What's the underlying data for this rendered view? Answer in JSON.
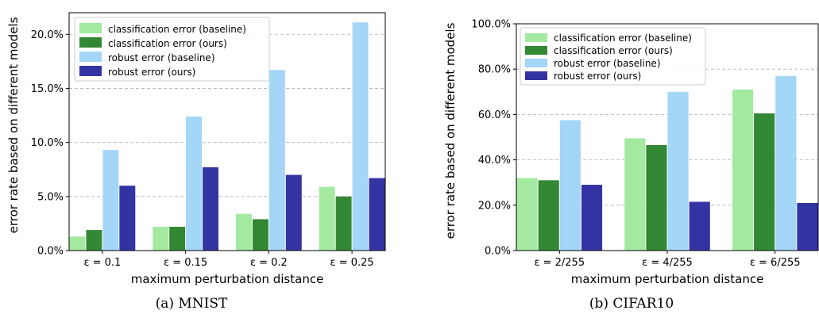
{
  "chart_data": [
    {
      "type": "bar",
      "caption": "(a) MNIST",
      "xlabel": "maximum perturbation distance",
      "ylabel": "error rate based on different models",
      "categories": [
        "ε = 0.1",
        "ε = 0.15",
        "ε = 0.2",
        "ε = 0.25"
      ],
      "ylim": [
        0,
        22
      ],
      "yticks": [
        0,
        5,
        10,
        15,
        20
      ],
      "ytick_labels": [
        "0.0%",
        "5.0%",
        "10.0%",
        "15.0%",
        "20.0%"
      ],
      "grid": "horizontal-dashed",
      "legend_position": "top-left",
      "series": [
        {
          "name": "classification error (baseline)",
          "color": "#a3eaa0",
          "values": [
            1.3,
            2.2,
            3.4,
            5.9
          ]
        },
        {
          "name": "classification error (ours)",
          "color": "#338833",
          "values": [
            1.9,
            2.2,
            2.9,
            5.0
          ]
        },
        {
          "name": "robust error (baseline)",
          "color": "#a3d6f7",
          "values": [
            9.3,
            12.4,
            16.7,
            21.1
          ]
        },
        {
          "name": "robust error (ours)",
          "color": "#3333a3",
          "values": [
            6.0,
            7.7,
            7.0,
            6.7
          ]
        }
      ]
    },
    {
      "type": "bar",
      "caption": "(b) CIFAR10",
      "xlabel": "maximum perturbation distance",
      "ylabel": "error rate based on different models",
      "categories": [
        "ε = 2/255",
        "ε = 4/255",
        "ε = 6/255"
      ],
      "ylim": [
        0,
        100
      ],
      "yticks": [
        0,
        20,
        40,
        60,
        80,
        100
      ],
      "ytick_labels": [
        "0.0%",
        "20.0%",
        "40.0%",
        "60.0%",
        "80.0%",
        "100.0%"
      ],
      "grid": "horizontal-dashed",
      "legend_position": "top-left",
      "series": [
        {
          "name": "classification error (baseline)",
          "color": "#a3eaa0",
          "values": [
            32.0,
            49.5,
            71.0
          ]
        },
        {
          "name": "classification error (ours)",
          "color": "#338833",
          "values": [
            31.0,
            46.5,
            60.5
          ]
        },
        {
          "name": "robust error (baseline)",
          "color": "#a3d6f7",
          "values": [
            57.5,
            70.0,
            77.0
          ]
        },
        {
          "name": "robust error (ours)",
          "color": "#3333a3",
          "values": [
            29.0,
            21.5,
            21.0
          ]
        }
      ]
    }
  ]
}
